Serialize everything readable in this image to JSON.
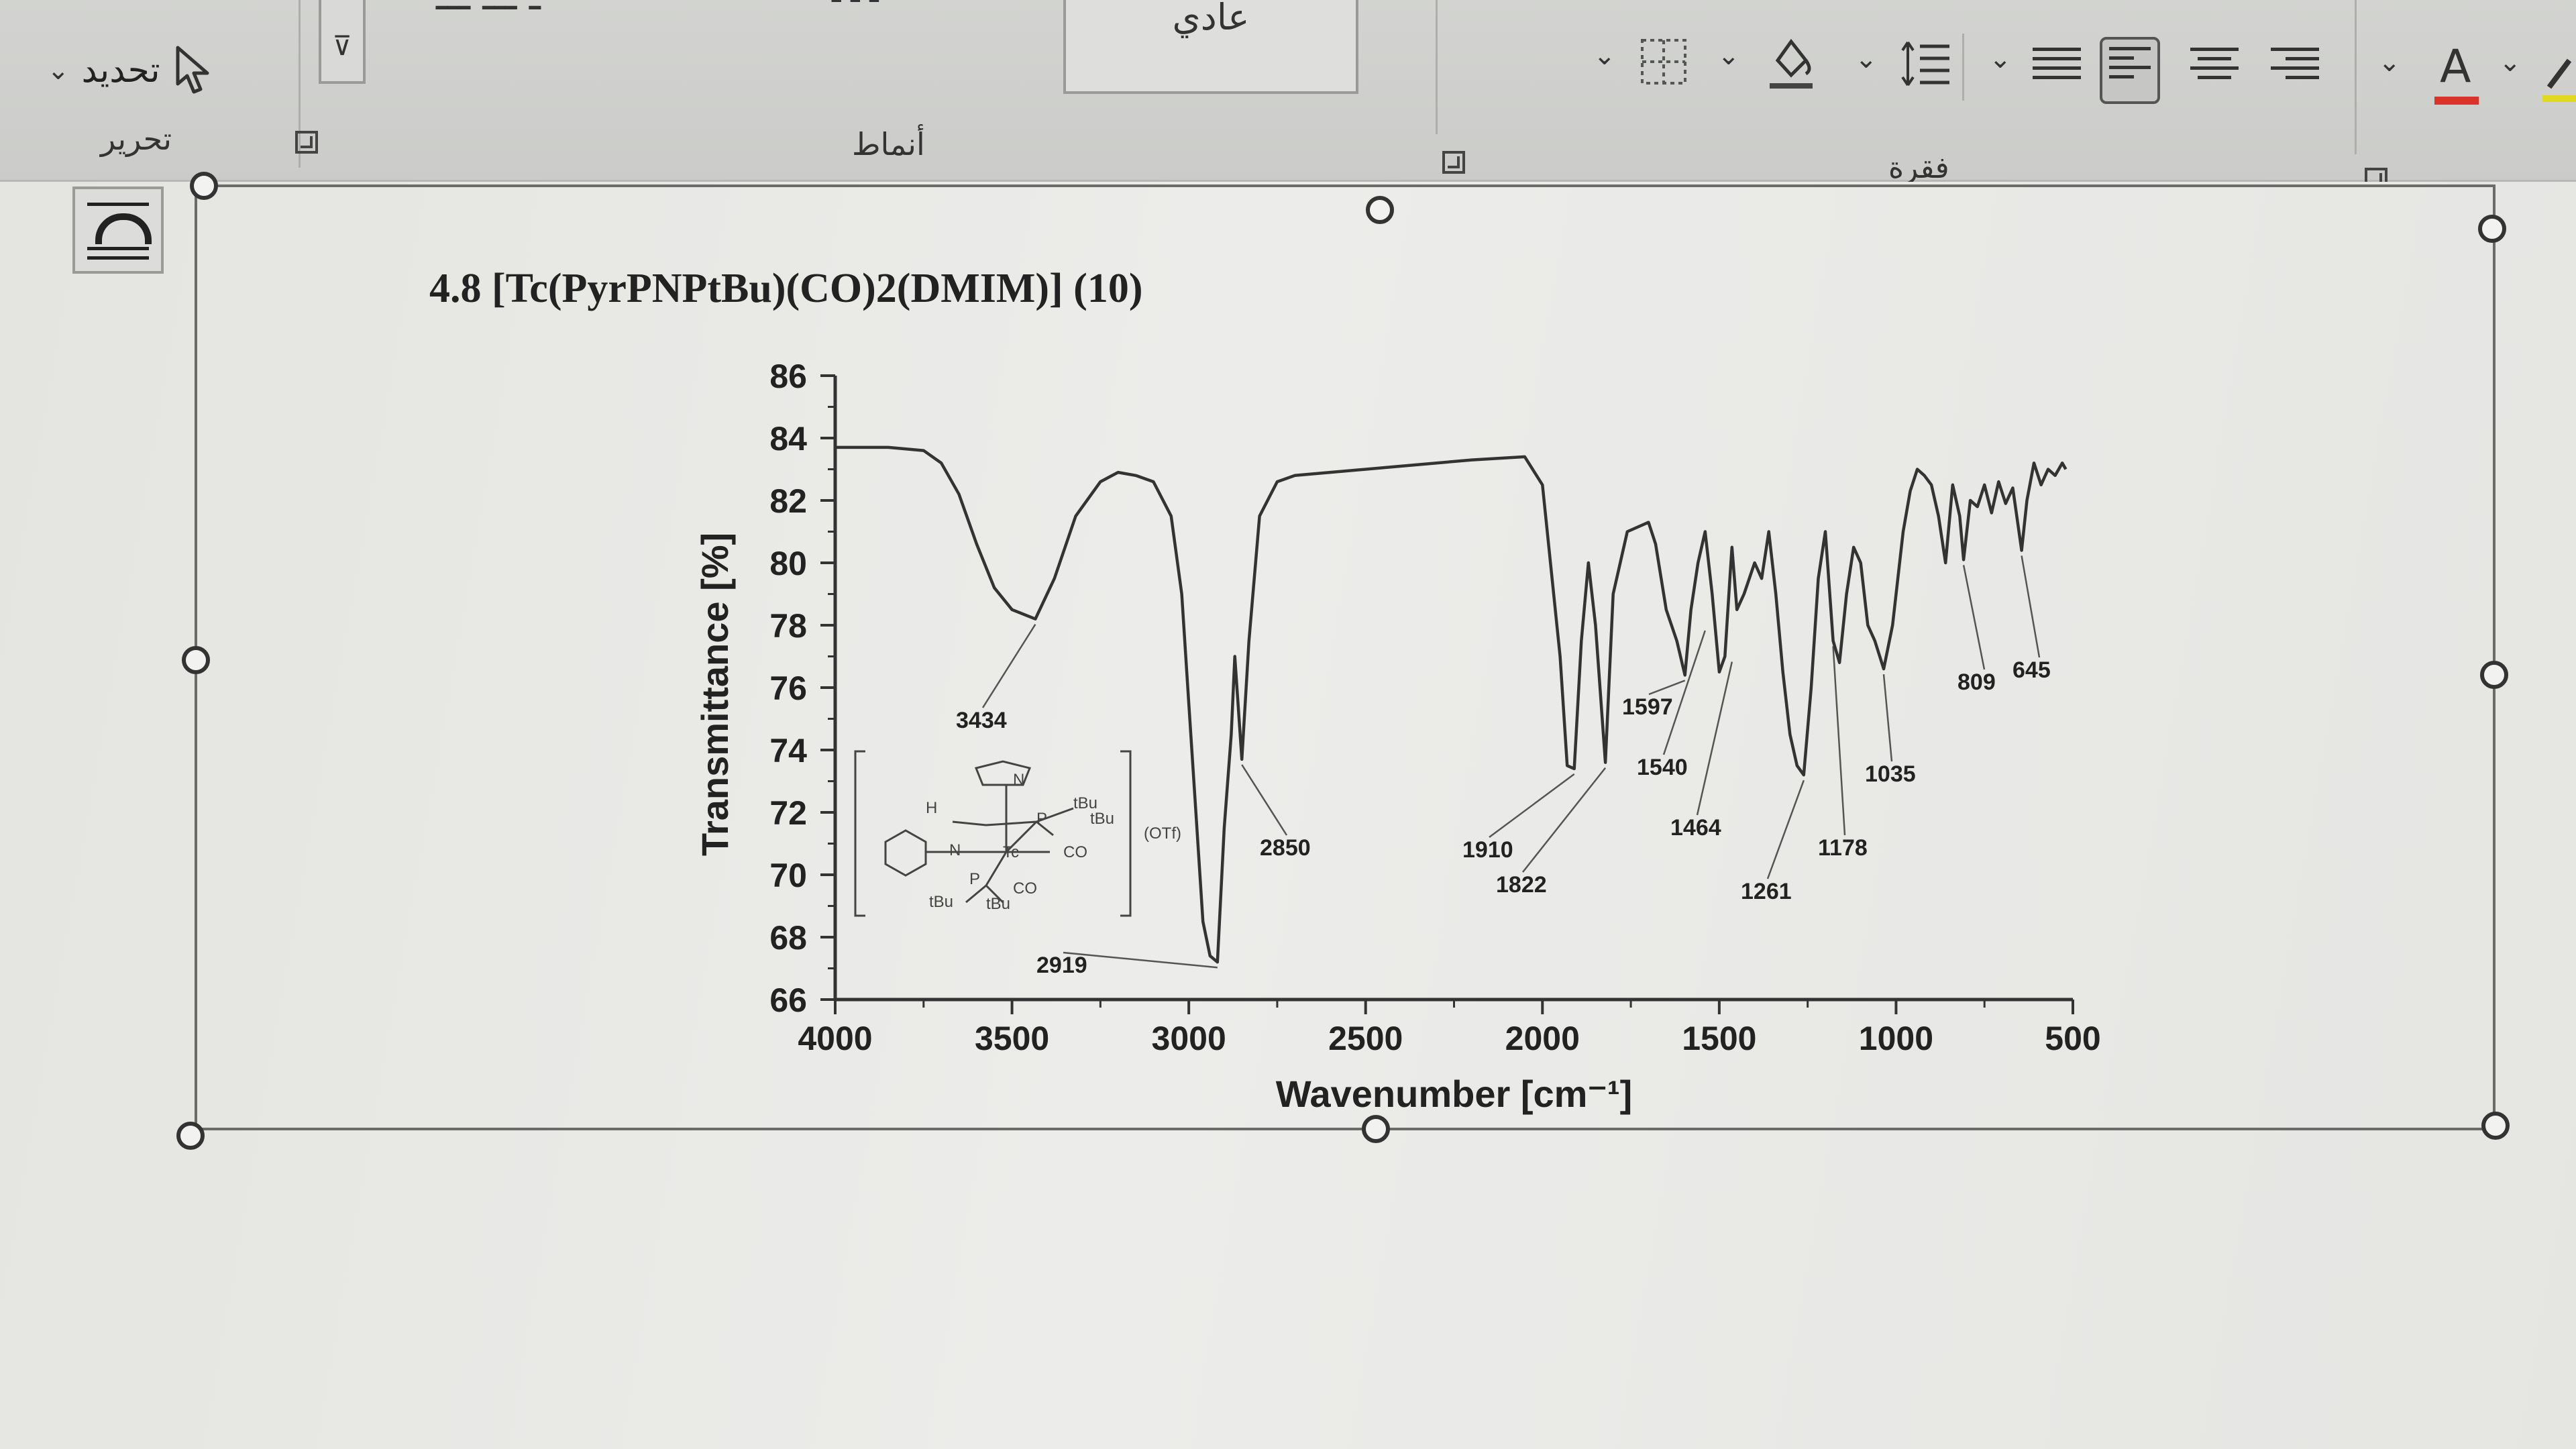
{
  "ribbon": {
    "editing": {
      "select_label": "تحديد",
      "group_label": "تحرير"
    },
    "styles": {
      "group_label": "أنماط",
      "normal_style": "عادي"
    },
    "paragraph": {
      "group_label": "فقرة"
    },
    "font_color_letter": "A",
    "font_color_accent": "#d9332b"
  },
  "document": {
    "heading": "4.8 [Tc(PyrPNPtBu)(CO)2(DMIM)] (10)"
  },
  "chart_data": {
    "type": "line",
    "title": "4.8 [Tc(PyrPNPtBu)(CO)2(DMIM)] (10)",
    "xlabel": "Wavenumber [cm⁻¹]",
    "ylabel": "Transmittance [%]",
    "xlim": [
      4000,
      500
    ],
    "ylim": [
      66,
      86
    ],
    "x_ticks": [
      4000,
      3500,
      3000,
      2500,
      2000,
      1500,
      1000,
      500
    ],
    "y_ticks": [
      66,
      68,
      70,
      72,
      74,
      76,
      78,
      80,
      82,
      84,
      86
    ],
    "grid": false,
    "series": [
      {
        "x": [
          4000,
          3850,
          3750,
          3700,
          3650,
          3600,
          3550,
          3500,
          3434,
          3380,
          3320,
          3250,
          3200,
          3150,
          3100,
          3050,
          3020,
          3000,
          2980,
          2960,
          2940,
          2919,
          2900,
          2880,
          2870,
          2850,
          2830,
          2800,
          2750,
          2700,
          2600,
          2400,
          2200,
          2050,
          2000,
          1950,
          1930,
          1910,
          1890,
          1870,
          1850,
          1822,
          1800,
          1760,
          1700,
          1680,
          1650,
          1620,
          1597,
          1580,
          1560,
          1540,
          1520,
          1500,
          1484,
          1470,
          1464,
          1450,
          1430,
          1400,
          1380,
          1360,
          1340,
          1320,
          1300,
          1280,
          1261,
          1240,
          1220,
          1200,
          1178,
          1160,
          1140,
          1120,
          1100,
          1080,
          1060,
          1035,
          1010,
          980,
          960,
          940,
          920,
          900,
          880,
          860,
          840,
          820,
          809,
          790,
          770,
          750,
          730,
          710,
          690,
          670,
          645,
          630,
          610,
          590,
          570,
          550,
          530,
          520
        ],
        "y": [
          83.7,
          83.7,
          83.6,
          83.2,
          82.2,
          80.6,
          79.2,
          78.5,
          78.2,
          79.5,
          81.5,
          82.6,
          82.9,
          82.8,
          82.6,
          81.5,
          79.0,
          75.5,
          72.0,
          68.5,
          67.4,
          67.2,
          71.5,
          74.5,
          77.0,
          73.7,
          77.5,
          81.5,
          82.6,
          82.8,
          82.9,
          83.1,
          83.3,
          83.4,
          82.5,
          77.0,
          73.5,
          73.4,
          77.5,
          80.0,
          78.0,
          73.6,
          79.0,
          81.0,
          81.3,
          80.6,
          78.5,
          77.5,
          76.4,
          78.5,
          80.0,
          81.0,
          79.0,
          76.5,
          77.0,
          79.5,
          80.5,
          78.5,
          79.0,
          80.0,
          79.5,
          81.0,
          79.0,
          76.5,
          74.5,
          73.5,
          73.2,
          76.0,
          79.5,
          81.0,
          77.5,
          76.8,
          79.0,
          80.5,
          80.0,
          78.0,
          77.5,
          76.6,
          78.0,
          81.0,
          82.3,
          83.0,
          82.8,
          82.5,
          81.5,
          80.0,
          82.5,
          81.5,
          80.1,
          82.0,
          81.8,
          82.5,
          81.6,
          82.6,
          81.9,
          82.4,
          80.4,
          82.0,
          83.2,
          82.5,
          83.0,
          82.8,
          83.2,
          83.0
        ]
      }
    ],
    "annotations": [
      {
        "label": "3434",
        "x": 3434,
        "y": 78.2
      },
      {
        "label": "2919",
        "x": 2919,
        "y": 67.2
      },
      {
        "label": "2850",
        "x": 2850,
        "y": 73.7
      },
      {
        "label": "1910",
        "x": 1910,
        "y": 73.4
      },
      {
        "label": "1822",
        "x": 1822,
        "y": 73.6
      },
      {
        "label": "1597",
        "x": 1597,
        "y": 76.4
      },
      {
        "label": "1540",
        "x": 1540,
        "y": 78.0
      },
      {
        "label": "1464",
        "x": 1464,
        "y": 77.0
      },
      {
        "label": "1261",
        "x": 1261,
        "y": 73.2
      },
      {
        "label": "1178",
        "x": 1178,
        "y": 77.5
      },
      {
        "label": "1035",
        "x": 1035,
        "y": 76.6
      },
      {
        "label": "809",
        "x": 809,
        "y": 80.1
      },
      {
        "label": "645",
        "x": 645,
        "y": 80.4
      }
    ],
    "inset": {
      "labels": [
        "(OTf)",
        "CO",
        "CO",
        "tBu",
        "tBu",
        "tBu",
        "tBu",
        "H",
        "N",
        "N",
        "P",
        "P",
        "Tc"
      ]
    }
  }
}
